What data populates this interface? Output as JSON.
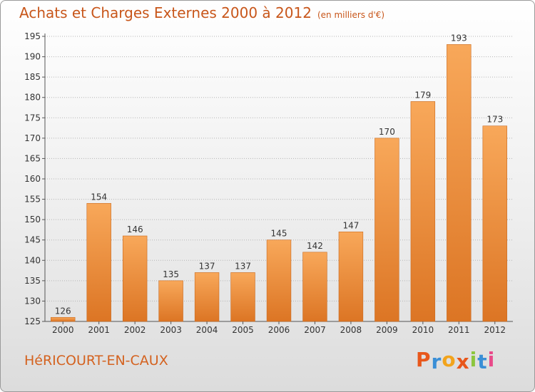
{
  "header": {
    "title": "Achats et Charges Externes 2000 à 2012",
    "subtitle": "(en milliers d'€)"
  },
  "footer": {
    "city": "HéRICOURT-EN-CAUX",
    "brand": {
      "letters": [
        "P",
        "r",
        "o",
        "x",
        "i",
        "t",
        "i"
      ],
      "colors": [
        "#e8571b",
        "#3a8fd6",
        "#f2a41c",
        "#e8571b",
        "#8cc63e",
        "#3a8fd6",
        "#e94a8a"
      ]
    }
  },
  "colors": {
    "bar_light": "#f8a85a",
    "bar_dark": "#dc7524",
    "text": "#333333",
    "title": "#c8561a"
  },
  "chart_data": {
    "type": "bar",
    "title": "Achats et Charges Externes 2000 à 2012",
    "subtitle": "(en milliers d'€)",
    "categories": [
      "2000",
      "2001",
      "2002",
      "2003",
      "2004",
      "2005",
      "2006",
      "2007",
      "2008",
      "2009",
      "2010",
      "2011",
      "2012"
    ],
    "values": [
      126,
      154,
      146,
      135,
      137,
      137,
      145,
      142,
      147,
      170,
      179,
      193,
      173
    ],
    "ylim": [
      125,
      195
    ],
    "yticks": [
      125,
      130,
      135,
      140,
      145,
      150,
      155,
      160,
      165,
      170,
      175,
      180,
      185,
      190,
      195
    ],
    "grid": "horizontal-dotted",
    "legend": "none"
  }
}
